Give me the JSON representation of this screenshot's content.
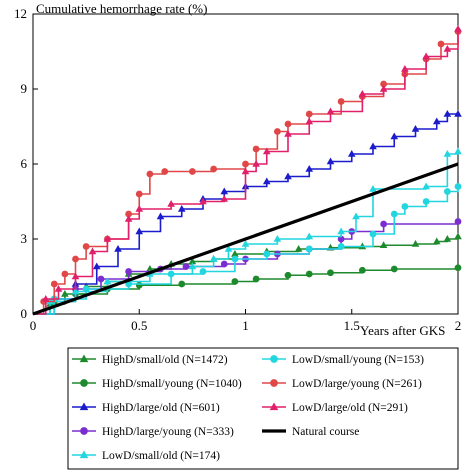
{
  "chart_data": {
    "type": "line",
    "title": "",
    "ylabel": "Cumulative hemorrhage rate (%)",
    "xlabel": "Years after GKS",
    "xlim": [
      0,
      2
    ],
    "ylim": [
      0,
      12
    ],
    "x_ticks": [
      0,
      0.5,
      1,
      1.5,
      2
    ],
    "x_tick_labels": [
      "0",
      "0.5",
      "1",
      "1.5",
      "2"
    ],
    "y_ticks": [
      0,
      3,
      6,
      9,
      12
    ],
    "y_tick_labels": [
      "0",
      "3",
      "6",
      "9",
      "12"
    ],
    "grid": false,
    "legend_position": "bottom",
    "series": [
      {
        "name": "HighD/small/old (N=1472)",
        "color": "#1e8a2e",
        "marker": "triangle",
        "points": [
          [
            0,
            0
          ],
          [
            0.08,
            0.4
          ],
          [
            0.15,
            0.8
          ],
          [
            0.25,
            1.1
          ],
          [
            0.35,
            1.3
          ],
          [
            0.45,
            1.6
          ],
          [
            0.55,
            1.8
          ],
          [
            0.65,
            2.0
          ],
          [
            0.75,
            2.1
          ],
          [
            0.85,
            2.2
          ],
          [
            0.95,
            2.4
          ],
          [
            1.1,
            2.5
          ],
          [
            1.25,
            2.6
          ],
          [
            1.4,
            2.65
          ],
          [
            1.55,
            2.7
          ],
          [
            1.65,
            2.75
          ],
          [
            1.8,
            2.8
          ],
          [
            1.9,
            2.9
          ],
          [
            1.95,
            3.0
          ],
          [
            2.0,
            3.1
          ]
        ]
      },
      {
        "name": "HighD/small/young (N=1040)",
        "color": "#1e8a2e",
        "marker": "circle",
        "points": [
          [
            0,
            0
          ],
          [
            0.1,
            0.5
          ],
          [
            0.2,
            0.8
          ],
          [
            0.35,
            1.0
          ],
          [
            0.5,
            1.15
          ],
          [
            0.7,
            1.2
          ],
          [
            0.95,
            1.3
          ],
          [
            1.05,
            1.4
          ],
          [
            1.2,
            1.55
          ],
          [
            1.3,
            1.6
          ],
          [
            1.4,
            1.65
          ],
          [
            1.55,
            1.75
          ],
          [
            1.7,
            1.8
          ],
          [
            2.0,
            1.85
          ]
        ]
      },
      {
        "name": "HighD/large/old (N=601)",
        "color": "#1c1ccc",
        "marker": "triangle",
        "points": [
          [
            0,
            0
          ],
          [
            0.1,
            0.6
          ],
          [
            0.2,
            1.2
          ],
          [
            0.3,
            1.9
          ],
          [
            0.4,
            2.6
          ],
          [
            0.5,
            3.3
          ],
          [
            0.6,
            3.9
          ],
          [
            0.7,
            4.2
          ],
          [
            0.8,
            4.6
          ],
          [
            0.9,
            4.9
          ],
          [
            1.0,
            5.1
          ],
          [
            1.1,
            5.3
          ],
          [
            1.2,
            5.5
          ],
          [
            1.3,
            5.8
          ],
          [
            1.4,
            6.1
          ],
          [
            1.5,
            6.4
          ],
          [
            1.6,
            6.7
          ],
          [
            1.7,
            7.1
          ],
          [
            1.8,
            7.4
          ],
          [
            1.9,
            7.7
          ],
          [
            1.95,
            8.0
          ],
          [
            2.0,
            8.0
          ]
        ]
      },
      {
        "name": "HighD/large/young (N=333)",
        "color": "#7a2ecf",
        "marker": "circle",
        "points": [
          [
            0,
            0
          ],
          [
            0.1,
            0.6
          ],
          [
            0.2,
            1.0
          ],
          [
            0.32,
            1.4
          ],
          [
            0.45,
            1.7
          ],
          [
            0.6,
            1.8
          ],
          [
            0.72,
            1.9
          ],
          [
            0.9,
            2.0
          ],
          [
            1.0,
            2.2
          ],
          [
            1.15,
            2.4
          ],
          [
            1.3,
            2.6
          ],
          [
            1.45,
            3.0
          ],
          [
            1.5,
            3.3
          ],
          [
            1.65,
            3.6
          ],
          [
            2.0,
            3.7
          ]
        ]
      },
      {
        "name": "LowD/small/old (N=174)",
        "color": "#22d6e0",
        "marker": "triangle",
        "points": [
          [
            0,
            0
          ],
          [
            0.08,
            0.5
          ],
          [
            0.2,
            0.9
          ],
          [
            0.35,
            1.3
          ],
          [
            0.55,
            1.6
          ],
          [
            0.75,
            1.9
          ],
          [
            0.85,
            2.2
          ],
          [
            0.92,
            2.6
          ],
          [
            1.0,
            2.8
          ],
          [
            1.15,
            3.0
          ],
          [
            1.3,
            3.1
          ],
          [
            1.45,
            3.3
          ],
          [
            1.52,
            3.9
          ],
          [
            1.6,
            5.0
          ],
          [
            1.85,
            5.1
          ],
          [
            1.95,
            6.4
          ],
          [
            2.0,
            6.5
          ]
        ]
      },
      {
        "name": "LowD/small/young (N=153)",
        "color": "#22d6e0",
        "marker": "circle",
        "points": [
          [
            0,
            0
          ],
          [
            0.1,
            0.6
          ],
          [
            0.25,
            1.0
          ],
          [
            0.45,
            1.2
          ],
          [
            0.65,
            1.6
          ],
          [
            0.8,
            1.7
          ],
          [
            0.95,
            2.2
          ],
          [
            1.1,
            2.4
          ],
          [
            1.3,
            2.6
          ],
          [
            1.45,
            2.7
          ],
          [
            1.6,
            3.2
          ],
          [
            1.7,
            4.0
          ],
          [
            1.75,
            4.3
          ],
          [
            1.85,
            4.5
          ],
          [
            1.95,
            4.9
          ],
          [
            2.0,
            5.1
          ]
        ]
      },
      {
        "name": "LowD/large/young (N=261)",
        "color": "#e04848",
        "marker": "circle",
        "points": [
          [
            0,
            0
          ],
          [
            0.05,
            0.5
          ],
          [
            0.1,
            1.2
          ],
          [
            0.15,
            1.6
          ],
          [
            0.2,
            2.2
          ],
          [
            0.25,
            2.7
          ],
          [
            0.35,
            3.0
          ],
          [
            0.45,
            4.0
          ],
          [
            0.5,
            4.8
          ],
          [
            0.55,
            5.6
          ],
          [
            0.62,
            5.7
          ],
          [
            0.75,
            5.7
          ],
          [
            0.85,
            5.8
          ],
          [
            1.0,
            6.0
          ],
          [
            1.05,
            6.6
          ],
          [
            1.15,
            7.3
          ],
          [
            1.2,
            7.6
          ],
          [
            1.3,
            8.0
          ],
          [
            1.45,
            8.5
          ],
          [
            1.55,
            8.7
          ],
          [
            1.65,
            9.2
          ],
          [
            1.75,
            9.6
          ],
          [
            1.85,
            10.2
          ],
          [
            1.92,
            10.8
          ],
          [
            2.0,
            11.3
          ]
        ]
      },
      {
        "name": "LowD/large/old (N=291)",
        "color": "#e0206a",
        "marker": "triangle",
        "points": [
          [
            0,
            0
          ],
          [
            0.06,
            0.6
          ],
          [
            0.12,
            1.0
          ],
          [
            0.2,
            1.5
          ],
          [
            0.28,
            2.5
          ],
          [
            0.35,
            3.0
          ],
          [
            0.45,
            3.8
          ],
          [
            0.5,
            4.2
          ],
          [
            0.65,
            4.4
          ],
          [
            0.8,
            4.5
          ],
          [
            0.9,
            4.6
          ],
          [
            1.0,
            5.7
          ],
          [
            1.05,
            6.0
          ],
          [
            1.1,
            6.5
          ],
          [
            1.2,
            7.2
          ],
          [
            1.3,
            7.7
          ],
          [
            1.4,
            8.1
          ],
          [
            1.55,
            8.8
          ],
          [
            1.65,
            9.0
          ],
          [
            1.75,
            9.8
          ],
          [
            1.85,
            10.3
          ],
          [
            1.95,
            10.6
          ],
          [
            2.0,
            11.4
          ]
        ]
      },
      {
        "name": "Natural course",
        "color": "#000000",
        "marker": "none",
        "points": [
          [
            0,
            0
          ],
          [
            2,
            6
          ]
        ]
      }
    ]
  }
}
